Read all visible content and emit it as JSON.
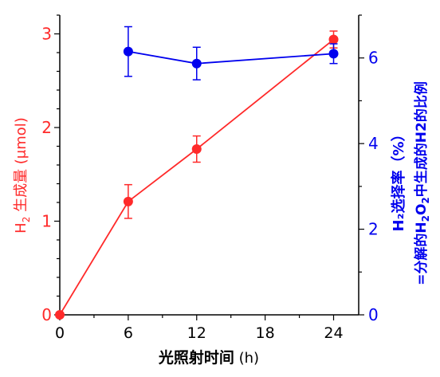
{
  "chart_data": {
    "type": "line",
    "x": [
      0,
      6,
      12,
      24
    ],
    "xlabel_main": "光照射时间",
    "xlabel_unit": "(h)",
    "xlim": [
      0,
      26.2
    ],
    "xticks": [
      0,
      6,
      12,
      18,
      24
    ],
    "grid": false,
    "legend": "none",
    "left_axis": {
      "label_h": "H",
      "label_sub": "2",
      "label_rest": " 生成量 (μmol)",
      "ylim": [
        0,
        3.2
      ],
      "ticks": [
        0,
        1,
        2,
        3
      ],
      "color": "#ff2a2a"
    },
    "right_axis": {
      "label_line1": "H₂选择率（%）",
      "label_line2_parts": [
        "=分解的H",
        "2",
        "O",
        "2",
        "中生成的H2的比例"
      ],
      "ylim": [
        0,
        7
      ],
      "ticks": [
        0,
        2,
        4,
        6
      ],
      "color": "#0000ee"
    },
    "series": [
      {
        "axis": "left",
        "color": "#ff2a2a",
        "x": [
          0,
          6,
          12,
          24
        ],
        "values": [
          0.0,
          1.21,
          1.77,
          2.94
        ],
        "errors": [
          0.0,
          0.18,
          0.14,
          0.09
        ]
      },
      {
        "axis": "right",
        "color": "#0000ee",
        "x": [
          6,
          12,
          24
        ],
        "values": [
          6.15,
          5.87,
          6.1
        ],
        "errors": [
          0.58,
          0.38,
          0.23
        ]
      }
    ]
  }
}
